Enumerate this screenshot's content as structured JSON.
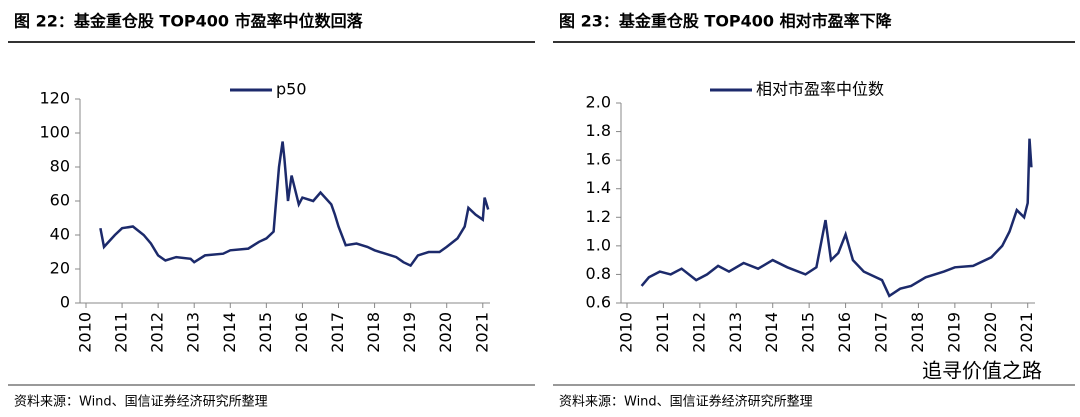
{
  "chart_data": [
    {
      "type": "line",
      "title": "图 22：基金重仓股 TOP400 市盈率中位数回落",
      "source": "资料来源：Wind、国信证券经济研究所整理",
      "xlim": [
        2010,
        2021.2
      ],
      "xticks": [
        2010,
        2011,
        2012,
        2013,
        2014,
        2015,
        2016,
        2017,
        2018,
        2019,
        2020,
        2021
      ],
      "ylim": [
        0,
        120
      ],
      "yticks": [
        0,
        20,
        40,
        60,
        80,
        100,
        120
      ],
      "legend": "top",
      "series": [
        {
          "name": "p50",
          "color": "#1c2a6b",
          "x": [
            2010.4,
            2010.5,
            2010.8,
            2011.0,
            2011.3,
            2011.6,
            2011.8,
            2012.0,
            2012.2,
            2012.5,
            2012.9,
            2013.0,
            2013.3,
            2013.8,
            2014.0,
            2014.5,
            2014.8,
            2015.0,
            2015.2,
            2015.25,
            2015.35,
            2015.45,
            2015.5,
            2015.6,
            2015.7,
            2015.9,
            2016.0,
            2016.3,
            2016.5,
            2016.8,
            2016.9,
            2017.0,
            2017.2,
            2017.5,
            2017.8,
            2018.0,
            2018.3,
            2018.6,
            2018.8,
            2019.0,
            2019.2,
            2019.5,
            2019.8,
            2020.0,
            2020.3,
            2020.5,
            2020.6,
            2020.8,
            2021.0,
            2021.05,
            2021.15
          ],
          "values": [
            44,
            33,
            40,
            44,
            45,
            40,
            35,
            28,
            25,
            27,
            26,
            24,
            28,
            29,
            31,
            32,
            36,
            38,
            42,
            55,
            80,
            95,
            85,
            60,
            75,
            58,
            62,
            60,
            65,
            58,
            52,
            45,
            34,
            35,
            33,
            31,
            29,
            27,
            24,
            22,
            28,
            30,
            30,
            33,
            38,
            45,
            56,
            52,
            49,
            62,
            55
          ]
        }
      ]
    },
    {
      "type": "line",
      "title": "图 23：基金重仓股 TOP400 相对市盈率下降",
      "source": "资料来源：Wind、国信证券经济研究所整理",
      "xlim": [
        2010,
        2021.2
      ],
      "xticks": [
        2010,
        2011,
        2012,
        2013,
        2014,
        2015,
        2016,
        2017,
        2018,
        2019,
        2020,
        2021
      ],
      "ylim": [
        0.6,
        2.0
      ],
      "yticks": [
        0.6,
        0.8,
        {
          "value": 1.0,
          "label": "1.0"
        },
        1.2,
        1.4,
        1.6,
        1.8,
        {
          "value": 2.0,
          "label": "2.0"
        }
      ],
      "legend": "top",
      "series": [
        {
          "name": "相对市盈率中位数",
          "color": "#1c2a6b",
          "x": [
            2010.4,
            2010.6,
            2010.9,
            2011.2,
            2011.5,
            2011.9,
            2012.2,
            2012.5,
            2012.8,
            2013.2,
            2013.6,
            2014.0,
            2014.4,
            2014.9,
            2015.2,
            2015.45,
            2015.6,
            2015.8,
            2016.0,
            2016.2,
            2016.5,
            2017.0,
            2017.2,
            2017.5,
            2017.8,
            2018.2,
            2018.7,
            2019.0,
            2019.5,
            2020.0,
            2020.3,
            2020.5,
            2020.7,
            2020.9,
            2021.0,
            2021.05,
            2021.1
          ],
          "values": [
            0.72,
            0.78,
            0.82,
            0.8,
            0.84,
            0.76,
            0.8,
            0.86,
            0.82,
            0.88,
            0.84,
            0.9,
            0.85,
            0.8,
            0.85,
            1.18,
            0.9,
            0.95,
            1.08,
            0.9,
            0.82,
            0.76,
            0.65,
            0.7,
            0.72,
            0.78,
            0.82,
            0.85,
            0.86,
            0.92,
            1.0,
            1.1,
            1.25,
            1.2,
            1.3,
            1.75,
            1.55
          ]
        }
      ]
    }
  ],
  "watermark": "追寻价值之路"
}
